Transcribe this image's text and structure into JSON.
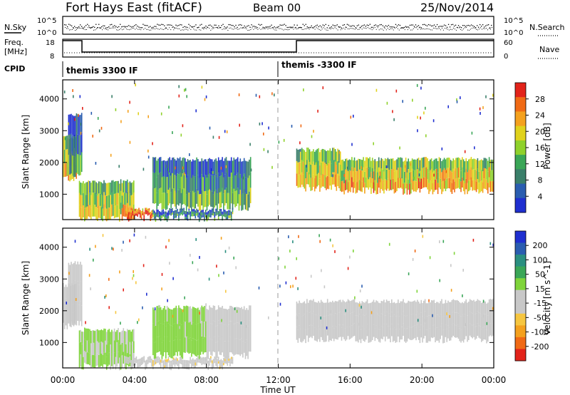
{
  "header": {
    "station": "Fort Hays East (fitACF)",
    "beam": "Beam 00",
    "date": "25/Nov/2014"
  },
  "noise_panel": {
    "left_label": "N.Sky",
    "right_label": "N.Search",
    "left_ticks": [
      "10^5",
      "10^0"
    ],
    "right_ticks": [
      "10^5",
      "10^0"
    ]
  },
  "freq_panel": {
    "left_label_line1": "Freq.",
    "left_label_line2": "[MHz]",
    "right_label": "Nave",
    "left_ticks": [
      "18",
      "8"
    ],
    "right_ticks": [
      "60",
      "0"
    ]
  },
  "cpid": {
    "label": "CPID",
    "segments": [
      "themis 3300 IF",
      "themis -3300 IF"
    ]
  },
  "chart_data": [
    {
      "type": "heatmap",
      "name": "power",
      "ylabel": "Slant Range [km]",
      "yticks": [
        "1000",
        "2000",
        "3000",
        "4000"
      ],
      "ylim": [
        200,
        4600
      ],
      "colorbar_label": "Power [dB]",
      "colorbar_ticks": [
        "4",
        "8",
        "12",
        "16",
        "20",
        "24",
        "28"
      ],
      "colors": [
        "#1f2fd0",
        "#2a5db0",
        "#3a7f6a",
        "#3aa657",
        "#8fd12b",
        "#e0d21c",
        "#f4a11e",
        "#f06a15",
        "#e2231a"
      ],
      "regions": [
        {
          "t": [
            0.0,
            0.8
          ],
          "range": [
            1500,
            2800
          ],
          "level": 0.55
        },
        {
          "t": [
            0.3,
            1.1
          ],
          "range": [
            1600,
            3500
          ],
          "level": 0.25
        },
        {
          "t": [
            0.9,
            4.0
          ],
          "range": [
            250,
            1400
          ],
          "level": 0.5
        },
        {
          "t": [
            3.5,
            5.0
          ],
          "range": [
            250,
            500
          ],
          "level": 0.85
        },
        {
          "t": [
            5.0,
            9.5
          ],
          "range": [
            250,
            500
          ],
          "level": 0.25
        },
        {
          "t": [
            5.0,
            10.5
          ],
          "range": [
            600,
            2100
          ],
          "level": 0.3
        },
        {
          "t": [
            13.0,
            15.5
          ],
          "range": [
            1200,
            2400
          ],
          "level": 0.55
        },
        {
          "t": [
            15.5,
            24.0
          ],
          "range": [
            1100,
            2100
          ],
          "level": 0.6
        }
      ]
    },
    {
      "type": "heatmap",
      "name": "velocity",
      "ylabel": "Slant Range [km]",
      "yticks": [
        "1000",
        "2000",
        "3000",
        "4000"
      ],
      "ylim": [
        200,
        4600
      ],
      "colorbar_label": "Velocity [m s^-1]",
      "colorbar_ticks": [
        "-200",
        "-100",
        "-50",
        "-15",
        "15",
        "50",
        "100",
        "200"
      ],
      "colors": [
        "#e2231a",
        "#f06a15",
        "#f4a11e",
        "#f6c640",
        "#c8c8c8",
        "#c8c8c8",
        "#7fd43a",
        "#3aa657",
        "#2a8f80",
        "#2a5db0",
        "#1f2fd0"
      ],
      "regions": [
        {
          "t": [
            0.0,
            0.8
          ],
          "range": [
            1500,
            2800
          ],
          "vel": 0
        },
        {
          "t": [
            0.3,
            1.1
          ],
          "range": [
            1600,
            3500
          ],
          "vel": 0
        },
        {
          "t": [
            0.9,
            4.0
          ],
          "range": [
            250,
            1400
          ],
          "vel": 30
        },
        {
          "t": [
            3.5,
            5.0
          ],
          "range": [
            250,
            500
          ],
          "vel": -40
        },
        {
          "t": [
            5.0,
            9.5
          ],
          "range": [
            250,
            500
          ],
          "vel": -60
        },
        {
          "t": [
            5.0,
            8.0
          ],
          "range": [
            600,
            2100
          ],
          "vel": 40
        },
        {
          "t": [
            8.0,
            10.5
          ],
          "range": [
            600,
            2100
          ],
          "vel": -40
        },
        {
          "t": [
            13.0,
            24.0
          ],
          "range": [
            1100,
            2300
          ],
          "vel": 0
        }
      ]
    }
  ],
  "x_axis": {
    "label": "Time UT",
    "ticks": [
      "00:00",
      "04:00",
      "08:00",
      "12:00",
      "16:00",
      "20:00",
      "00:00"
    ]
  }
}
